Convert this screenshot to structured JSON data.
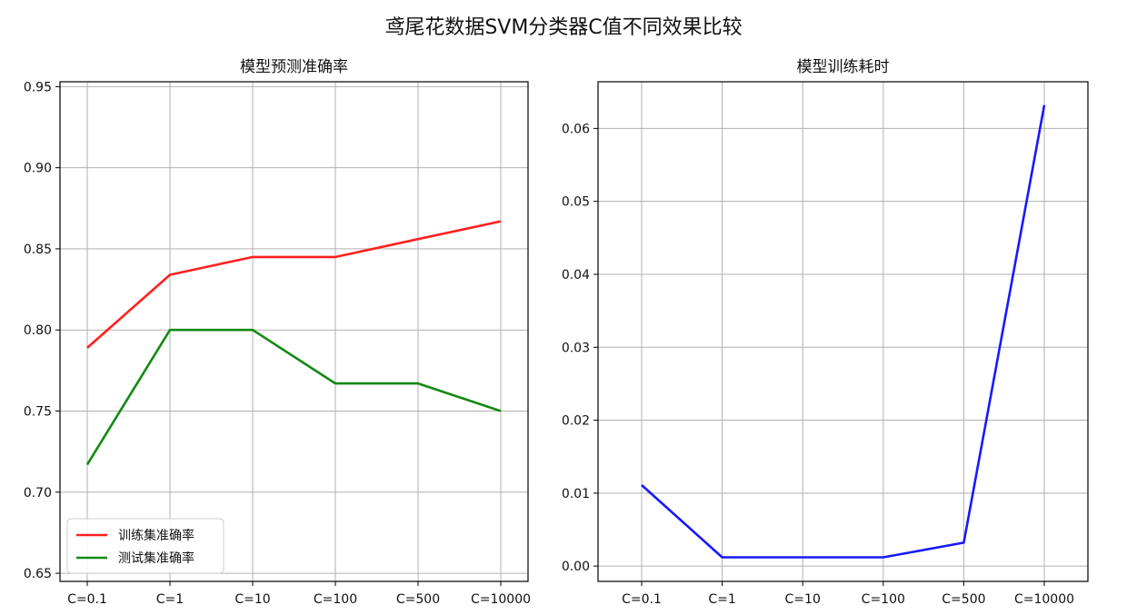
{
  "suptitle": "鸢尾花数据SVM分类器C值不同效果比较",
  "chart_data": [
    {
      "type": "line",
      "title": "模型预测准确率",
      "categories": [
        "C=0.1",
        "C=1",
        "C=10",
        "C=100",
        "C=500",
        "C=10000"
      ],
      "series": [
        {
          "name": "训练集准确率",
          "color": "#ff2020",
          "values": [
            0.789,
            0.834,
            0.845,
            0.845,
            0.856,
            0.867
          ]
        },
        {
          "name": "测试集准确率",
          "color": "#138a13",
          "values": [
            0.717,
            0.8,
            0.8,
            0.767,
            0.767,
            0.75
          ]
        }
      ],
      "ylim": [
        0.645,
        0.953
      ],
      "yticks": [
        "0.65",
        "0.70",
        "0.75",
        "0.80",
        "0.85",
        "0.90",
        "0.95"
      ],
      "grid": true,
      "legend": "lower-left"
    },
    {
      "type": "line",
      "title": "模型训练耗时",
      "categories": [
        "C=0.1",
        "C=1",
        "C=10",
        "C=100",
        "C=500",
        "C=10000"
      ],
      "series": [
        {
          "color": "#1818ff",
          "values": [
            0.0111,
            0.0012,
            0.0012,
            0.0012,
            0.0032,
            0.0632
          ]
        }
      ],
      "ylim": [
        -0.0021,
        0.0664
      ],
      "yticks": [
        "0.00",
        "0.01",
        "0.02",
        "0.03",
        "0.04",
        "0.05",
        "0.06"
      ],
      "grid": true
    }
  ]
}
